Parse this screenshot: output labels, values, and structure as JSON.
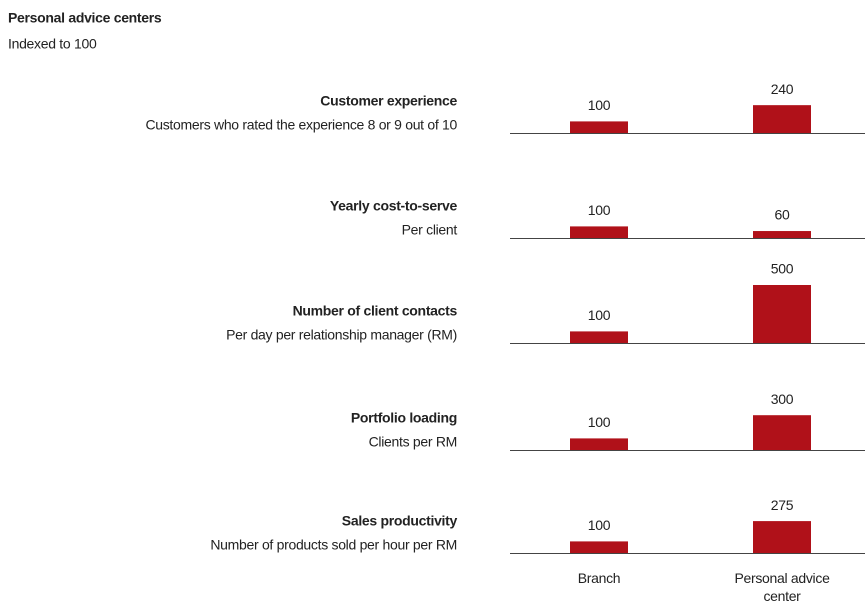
{
  "chart_data": {
    "type": "bar",
    "title": "Personal advice centers",
    "subtitle": "Indexed to 100",
    "categories": [
      "Branch",
      "Personal advice center"
    ],
    "color": "#b01119",
    "ylim": [
      0,
      500
    ],
    "panels": [
      {
        "title": "Customer experience",
        "subtitle": "Customers who rated the experience 8 or 9 out of 10",
        "values": [
          100,
          240
        ]
      },
      {
        "title": "Yearly cost-to-serve",
        "subtitle": "Per client",
        "values": [
          100,
          60
        ]
      },
      {
        "title": "Number of client contacts",
        "subtitle": "Per day per relationship manager (RM)",
        "values": [
          100,
          500
        ]
      },
      {
        "title": "Portfolio loading",
        "subtitle": "Clients per RM",
        "values": [
          100,
          300
        ]
      },
      {
        "title": "Sales productivity",
        "subtitle": "Number of products sold per hour per RM",
        "values": [
          100,
          275
        ]
      }
    ]
  }
}
